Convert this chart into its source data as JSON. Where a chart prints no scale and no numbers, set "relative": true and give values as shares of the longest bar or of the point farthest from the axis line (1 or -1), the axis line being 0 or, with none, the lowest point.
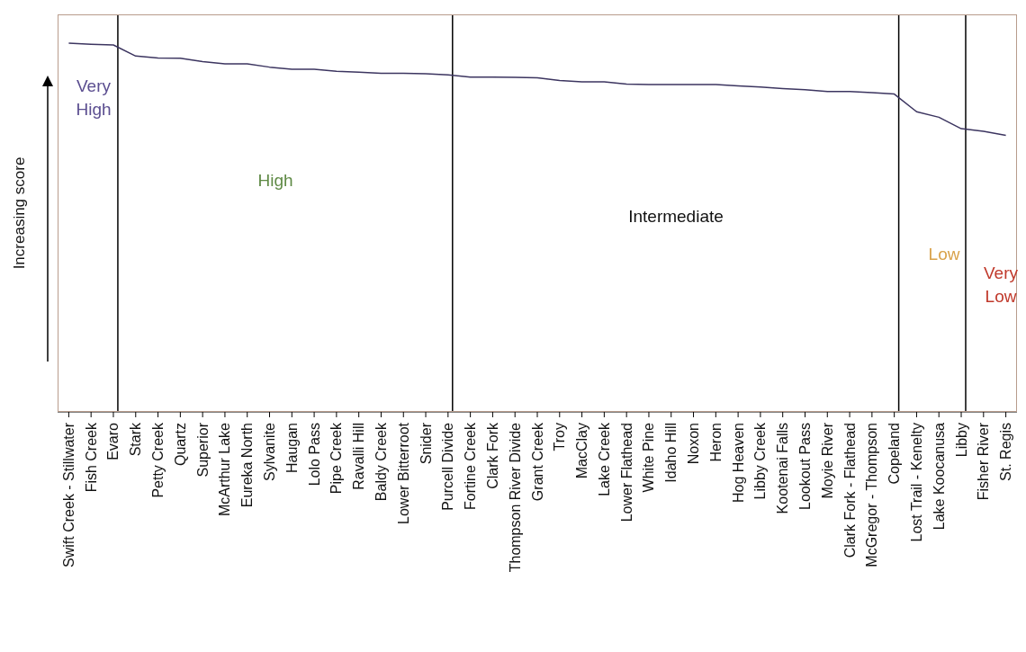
{
  "chart_data": {
    "type": "line",
    "relative": true,
    "ylabel": "Increasing score",
    "marker": "none",
    "line_style": "solid",
    "categories": [
      "Swift Creek - Stillwater",
      "Fish Creek",
      "Evaro",
      "Stark",
      "Petty Creek",
      "Quartz",
      "Superior",
      "McArthur Lake",
      "Eureka North",
      "Sylvanite",
      "Haugan",
      "Lolo Pass",
      "Pipe Creek",
      "Ravalli Hill",
      "Baldy Creek",
      "Lower Bitterroot",
      "Snider",
      "Purcell Divide",
      "Fortine Creek",
      "Clark Fork",
      "Thompson River Divide",
      "Grant Creek",
      "Troy",
      "MacClay",
      "Lake Creek",
      "Lower Flathead",
      "White Pine",
      "Idaho Hill",
      "Noxon",
      "Heron",
      "Hog Heaven",
      "Libby Creek",
      "Kootenai Falls",
      "Lookout Pass",
      "Moyie River",
      "Clark Fork - Flathead",
      "McGregor - Thompson",
      "Copeland",
      "Lost Trail - Kenelty",
      "Lake Koocanusa",
      "Libby",
      "Fisher River",
      "St. Regis"
    ],
    "series": [
      {
        "color": "#3c3560",
        "values": [
          1.0,
          0.997,
          0.995,
          0.965,
          0.96,
          0.959,
          0.95,
          0.944,
          0.944,
          0.935,
          0.929,
          0.929,
          0.924,
          0.921,
          0.918,
          0.918,
          0.917,
          0.914,
          0.908,
          0.908,
          0.907,
          0.906,
          0.899,
          0.895,
          0.895,
          0.889,
          0.888,
          0.888,
          0.888,
          0.888,
          0.884,
          0.881,
          0.877,
          0.874,
          0.869,
          0.869,
          0.866,
          0.862,
          0.814,
          0.799,
          0.768,
          0.761,
          0.75
        ]
      }
    ],
    "ref_lines": [
      {
        "axis": "x",
        "value": "Evaro",
        "color": "#000000"
      },
      {
        "axis": "x",
        "value": "Purcell Divide",
        "color": "#000000"
      },
      {
        "axis": "x",
        "value": "Copeland",
        "color": "#000000"
      },
      {
        "axis": "x",
        "value": "Libby",
        "color": "#000000"
      }
    ],
    "annotations": [
      "Very High",
      "High",
      "Intermediate",
      "Low",
      "Very Low"
    ]
  }
}
